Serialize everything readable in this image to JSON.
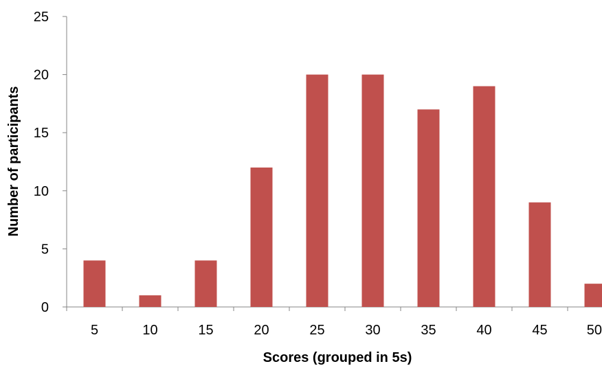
{
  "chart_data": {
    "type": "bar",
    "title": "",
    "xlabel": "Scores (grouped in 5s)",
    "ylabel": "Number of participants",
    "categories": [
      "5",
      "10",
      "15",
      "20",
      "25",
      "30",
      "35",
      "40",
      "45",
      "50"
    ],
    "values": [
      4,
      1,
      4,
      12,
      20,
      20,
      17,
      19,
      9,
      2
    ],
    "ylim": [
      0,
      25
    ],
    "yticks": [
      0,
      5,
      10,
      15,
      20,
      25
    ],
    "grid": false,
    "legend": "none",
    "bar_color": "#C0504D",
    "axis_color": "#868686"
  }
}
